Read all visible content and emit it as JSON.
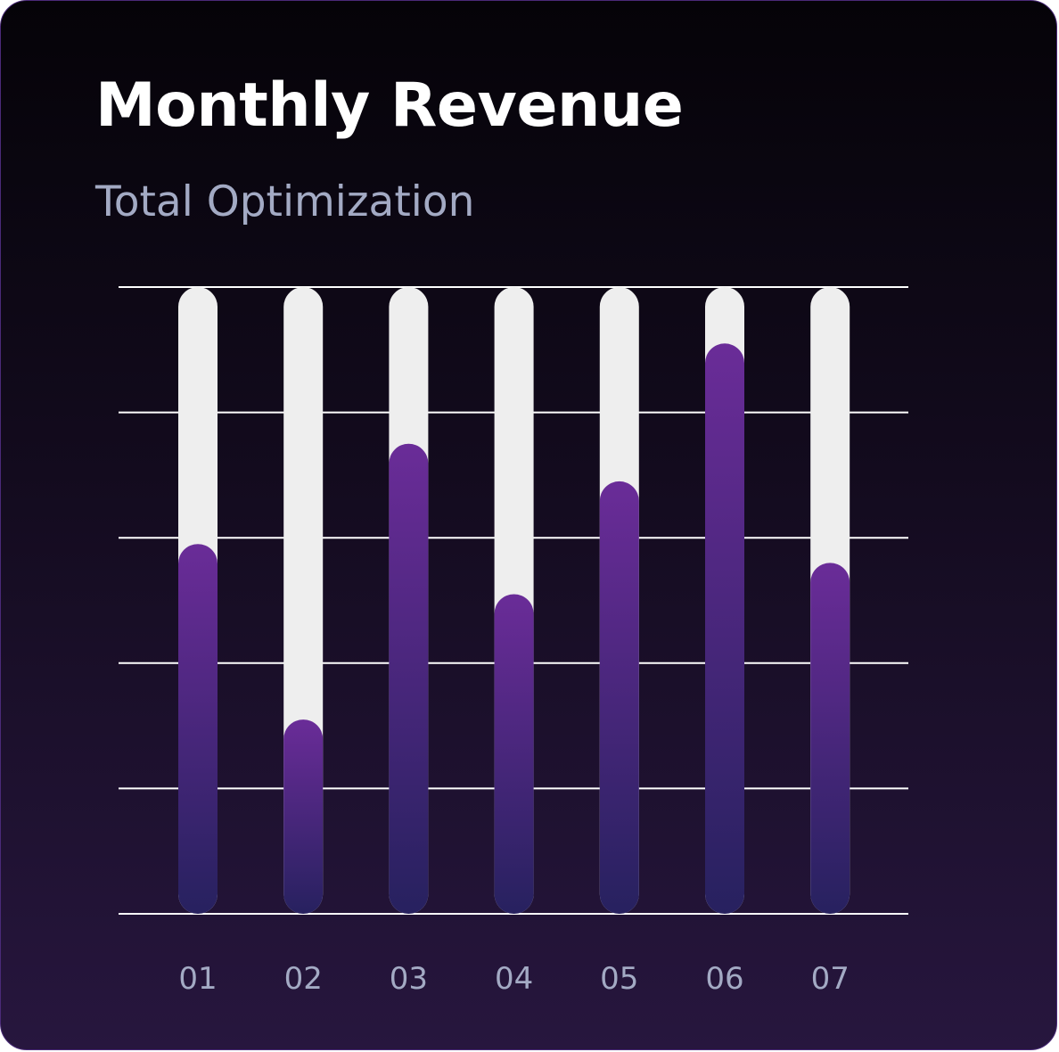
{
  "chart_data": {
    "type": "bar",
    "title": "Monthly Revenue",
    "subtitle": "Total Optimization",
    "categories": [
      "01",
      "02",
      "03",
      "04",
      "05",
      "06",
      "07"
    ],
    "values": [
      59,
      31,
      75,
      51,
      69,
      91,
      56
    ],
    "ylim": [
      0,
      100
    ],
    "grid": true,
    "gridline_count": 6,
    "xlabel": "",
    "ylabel": ""
  },
  "colors": {
    "track": "#eeeeee",
    "bar_top": "#6a2c98",
    "bar_bottom": "#27215f",
    "grid": "#ffffff",
    "tick_label": "#a3aac4"
  }
}
